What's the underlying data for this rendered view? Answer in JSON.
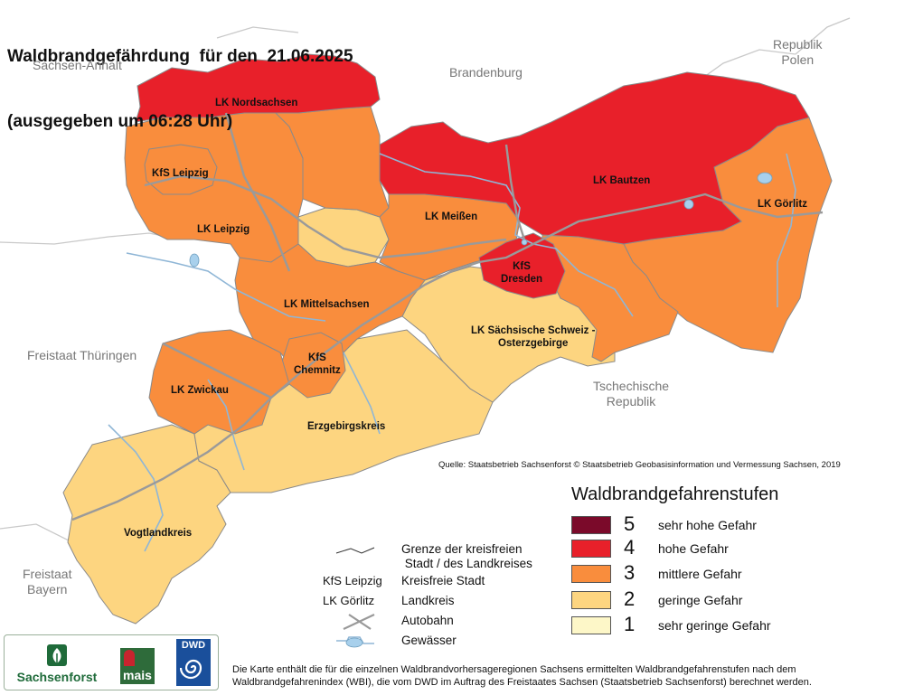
{
  "title": {
    "line1": "Waldbrandgefährdung  für den  21.06.2025",
    "line2": "(ausgegeben um 06:28 Uhr)"
  },
  "neighbors": {
    "sachsen_anhalt": "Sachsen-Anhalt",
    "brandenburg": "Brandenburg",
    "polen": "Republik\nPolen",
    "thueringen": "Freistaat Thüringen",
    "tschechien": "Tschechische\nRepublik",
    "bayern": "Freistaat\nBayern"
  },
  "districts": [
    {
      "name": "LK Nordsachsen",
      "level": 4
    },
    {
      "name": "KfS Leipzig",
      "level": 3
    },
    {
      "name": "LK Leipzig",
      "level": 3
    },
    {
      "name": "LK Meißen",
      "level": 3
    },
    {
      "name": "LK Bautzen",
      "level": 4
    },
    {
      "name": "LK Görlitz",
      "level": 3
    },
    {
      "name": "KfS\nDresden",
      "level": 4
    },
    {
      "name": "LK Mittelsachsen",
      "level": 3
    },
    {
      "name": "LK Sächsische Schweiz -\nOsterzgebirge",
      "level": 2
    },
    {
      "name": "KfS\nChemnitz",
      "level": 3
    },
    {
      "name": "LK Zwickau",
      "level": 3
    },
    {
      "name": "Erzgebirgskreis",
      "level": 2
    },
    {
      "name": "Vogtlandkreis",
      "level": 2
    }
  ],
  "source": "Quelle: Staatsbetrieb Sachsenforst  © Staatsbetrieb Geobasisinformation und Vermessung Sachsen, 2019",
  "legend": {
    "title": "Waldbrandgefahrenstufen",
    "items": [
      {
        "level": "5",
        "label": "sehr hohe Gefahr",
        "color": "#7b0a2a"
      },
      {
        "level": "4",
        "label": "hohe Gefahr",
        "color": "#e8202a"
      },
      {
        "level": "3",
        "label": "mittlere Gefahr",
        "color": "#f98d3d"
      },
      {
        "level": "2",
        "label": "geringe Gefahr",
        "color": "#fdd580"
      },
      {
        "level": "1",
        "label": "sehr geringe Gefahr",
        "color": "#fdf7c8"
      }
    ]
  },
  "key": {
    "border_label": "Grenze der kreisfreien\n Stadt / des Landkreises",
    "kfs_example": "KfS Leipzig",
    "kfs_label": "Kreisfreie Stadt",
    "lk_example": "LK Görlitz",
    "lk_label": "Landkreis",
    "autobahn_label": "Autobahn",
    "gewaesser_label": "Gewässer"
  },
  "logos": {
    "sachsenforst": "Sachsenforst",
    "mais": "mais",
    "dwd": "DWD"
  },
  "footnote": "Die Karte enthält die für die einzelnen Waldbrandvorhersageregionen Sachsens ermittelten Waldbrandgefahrenstufen nach dem Waldbrandgefahrenindex (WBI), die vom DWD im Auftrag des Freistaates Sachsen (Staatsbetrieb Sachsenforst) berechnet werden.",
  "colors": {
    "level4": "#e8202a",
    "level3": "#f98d3d",
    "level2": "#fdd580",
    "level1": "#fdf7c8",
    "level5": "#7b0a2a",
    "border": "#8a8a8a",
    "river": "#8fb6d6",
    "autobahn": "#9a9a9a"
  }
}
